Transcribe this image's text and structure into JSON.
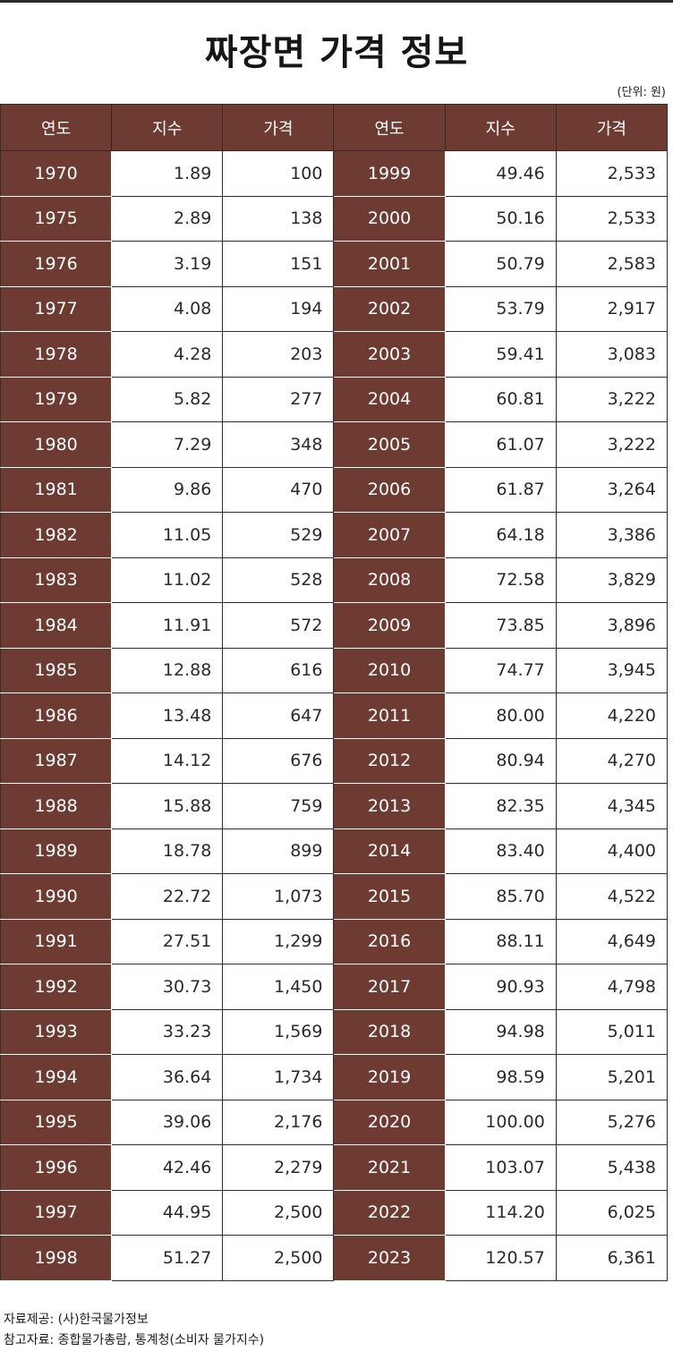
{
  "title": "짜장면 가격 정보",
  "unit_note": "(단위: 원)",
  "source": "자료제공: (사)한국물가정보",
  "reference": "참고자료: 종합물가총람, 통계청(소비자 물가지수)",
  "colors": {
    "header_bg": "#6e3b33",
    "header_text": "#ffffff",
    "cell_bg": "#ffffff"
  },
  "chart_data": {
    "type": "table",
    "title": "짜장면 가격 정보",
    "columns": [
      "연도",
      "지수",
      "가격",
      "연도",
      "지수",
      "가격"
    ],
    "rows": [
      [
        "1970",
        "1.89",
        "100",
        "1999",
        "49.46",
        "2,533"
      ],
      [
        "1975",
        "2.89",
        "138",
        "2000",
        "50.16",
        "2,533"
      ],
      [
        "1976",
        "3.19",
        "151",
        "2001",
        "50.79",
        "2,583"
      ],
      [
        "1977",
        "4.08",
        "194",
        "2002",
        "53.79",
        "2,917"
      ],
      [
        "1978",
        "4.28",
        "203",
        "2003",
        "59.41",
        "3,083"
      ],
      [
        "1979",
        "5.82",
        "277",
        "2004",
        "60.81",
        "3,222"
      ],
      [
        "1980",
        "7.29",
        "348",
        "2005",
        "61.07",
        "3,222"
      ],
      [
        "1981",
        "9.86",
        "470",
        "2006",
        "61.87",
        "3,264"
      ],
      [
        "1982",
        "11.05",
        "529",
        "2007",
        "64.18",
        "3,386"
      ],
      [
        "1983",
        "11.02",
        "528",
        "2008",
        "72.58",
        "3,829"
      ],
      [
        "1984",
        "11.91",
        "572",
        "2009",
        "73.85",
        "3,896"
      ],
      [
        "1985",
        "12.88",
        "616",
        "2010",
        "74.77",
        "3,945"
      ],
      [
        "1986",
        "13.48",
        "647",
        "2011",
        "80.00",
        "4,220"
      ],
      [
        "1987",
        "14.12",
        "676",
        "2012",
        "80.94",
        "4,270"
      ],
      [
        "1988",
        "15.88",
        "759",
        "2013",
        "82.35",
        "4,345"
      ],
      [
        "1989",
        "18.78",
        "899",
        "2014",
        "83.40",
        "4,400"
      ],
      [
        "1990",
        "22.72",
        "1,073",
        "2015",
        "85.70",
        "4,522"
      ],
      [
        "1991",
        "27.51",
        "1,299",
        "2016",
        "88.11",
        "4,649"
      ],
      [
        "1992",
        "30.73",
        "1,450",
        "2017",
        "90.93",
        "4,798"
      ],
      [
        "1993",
        "33.23",
        "1,569",
        "2018",
        "94.98",
        "5,011"
      ],
      [
        "1994",
        "36.64",
        "1,734",
        "2019",
        "98.59",
        "5,201"
      ],
      [
        "1995",
        "39.06",
        "2,176",
        "2020",
        "100.00",
        "5,276"
      ],
      [
        "1996",
        "42.46",
        "2,279",
        "2021",
        "103.07",
        "5,438"
      ],
      [
        "1997",
        "44.95",
        "2,500",
        "2022",
        "114.20",
        "6,025"
      ],
      [
        "1998",
        "51.27",
        "2,500",
        "2023",
        "120.57",
        "6,361"
      ]
    ]
  }
}
